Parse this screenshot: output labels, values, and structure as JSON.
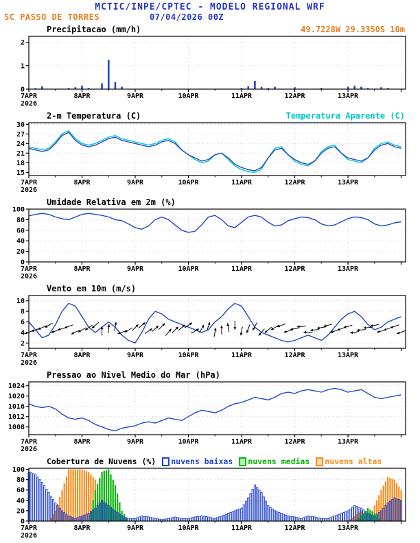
{
  "header": {
    "title": "MCTIC/INPE/CPTEC - MODELO REGIONAL WRF",
    "station": "SC PASSO DE TORRES",
    "run_datetime": "07/04/2026 00Z"
  },
  "colors": {
    "header_blue": "#2233cc",
    "text_orange": "#e87d1e",
    "line_blue": "#2244cc",
    "line_cyan": "#00c8c8",
    "cloud_green": "#00b400",
    "cloud_orange": "#ff8c1a",
    "axis_black": "#000000",
    "grid_gray": "#c9c9d4"
  },
  "x_axis": {
    "total_hours": 170,
    "data_hours": 168,
    "step_hours": 3,
    "major_tick_every": 24,
    "minor_tick_every": 12,
    "labels": [
      {
        "hour": 0,
        "label": "7APR",
        "sub": "2026"
      },
      {
        "hour": 24,
        "label": "8APR"
      },
      {
        "hour": 48,
        "label": "9APR"
      },
      {
        "hour": 72,
        "label": "10APR"
      },
      {
        "hour": 96,
        "label": "11APR"
      },
      {
        "hour": 120,
        "label": "12APR"
      },
      {
        "hour": 144,
        "label": "13APR"
      }
    ]
  },
  "chart_data": [
    {
      "id": "precipitation",
      "type": "bar",
      "title": "Precipitacao (mm/h)",
      "title_right": "49.7228W 29.3350S 10m",
      "ylim": [
        0,
        2.25
      ],
      "yticks": [
        0,
        1,
        2
      ],
      "series": [
        {
          "name": "precipitacao",
          "color": "#2244cc",
          "style": "fill",
          "values": [
            0,
            0.05,
            0.12,
            0,
            0,
            0,
            0.05,
            0.08,
            0.15,
            0.05,
            0,
            0.25,
            1.25,
            0.3,
            0.1,
            0,
            0,
            0,
            0,
            0,
            0,
            0,
            0,
            0,
            0,
            0,
            0,
            0,
            0,
            0,
            0,
            0,
            0.05,
            0.12,
            0.35,
            0.1,
            0.05,
            0.1,
            0,
            0,
            0.08,
            0,
            0,
            0,
            0.05,
            0,
            0,
            0,
            0.1,
            0.15,
            0.1,
            0.05,
            0,
            0.08,
            0.05,
            0,
            0
          ]
        }
      ]
    },
    {
      "id": "temperature",
      "type": "line",
      "title": "2-m Temperatura (C)",
      "title_right": "Temperatura Aparente (C)",
      "ylim": [
        14,
        30.5
      ],
      "yticks": [
        15,
        18,
        21,
        24,
        27,
        30
      ],
      "series": [
        {
          "name": "temperatura-aparente",
          "color": "#00c8c8",
          "values": [
            23,
            22.5,
            22,
            22.5,
            24.5,
            27,
            28,
            25.5,
            24,
            23.5,
            24,
            25,
            26,
            26.5,
            25.5,
            25,
            24.5,
            24,
            23.5,
            24,
            25,
            25.5,
            24.5,
            22,
            20.5,
            19,
            18,
            18.5,
            20.5,
            21,
            19,
            17,
            15.8,
            15.2,
            15,
            16,
            19.5,
            22.5,
            23,
            20.5,
            18.5,
            17.5,
            17,
            18.5,
            21.5,
            23,
            23.5,
            21,
            19,
            18.5,
            18,
            19.5,
            22.5,
            24,
            24.5,
            23.5,
            23
          ]
        },
        {
          "name": "2m-temperatura",
          "color": "#2244cc",
          "values": [
            22.5,
            22,
            21.5,
            22,
            24,
            26.5,
            27.5,
            25,
            23.5,
            23,
            23.5,
            24.5,
            25.5,
            26,
            25,
            24.5,
            24,
            23.5,
            23,
            23.5,
            24.5,
            25,
            24,
            22,
            20.5,
            19.5,
            18.5,
            19,
            20.5,
            21,
            19.5,
            17.5,
            16.5,
            15.8,
            15.5,
            16.5,
            19.5,
            22,
            22.5,
            20.5,
            19,
            18,
            17.5,
            18.5,
            21,
            22.5,
            23,
            21,
            19.5,
            19,
            18.5,
            19.5,
            22,
            23.5,
            24,
            23,
            22.5
          ]
        }
      ]
    },
    {
      "id": "humidity",
      "type": "line",
      "title": "Umidade Relativa em 2m (%)",
      "ylim": [
        0,
        100
      ],
      "yticks": [
        0,
        20,
        40,
        60,
        80,
        100
      ],
      "series": [
        {
          "name": "umidade-relativa",
          "color": "#2244cc",
          "values": [
            87,
            90,
            92,
            90,
            85,
            82,
            80,
            85,
            90,
            92,
            90,
            88,
            85,
            80,
            78,
            72,
            65,
            62,
            68,
            80,
            85,
            80,
            70,
            60,
            56,
            58,
            70,
            85,
            88,
            80,
            68,
            65,
            75,
            85,
            88,
            85,
            75,
            68,
            70,
            78,
            82,
            85,
            84,
            80,
            72,
            68,
            70,
            76,
            82,
            85,
            84,
            80,
            72,
            68,
            70,
            74,
            76
          ]
        }
      ]
    },
    {
      "id": "wind",
      "type": "line",
      "title": "Vento em 10m (m/s)",
      "ylim": [
        1,
        11
      ],
      "yticks": [
        2,
        4,
        6,
        8,
        10
      ],
      "series": [
        {
          "name": "vento-10m",
          "color": "#2244cc",
          "values": [
            6,
            4.5,
            3,
            3.5,
            5.5,
            8,
            9.5,
            9,
            7,
            5,
            4,
            5,
            6,
            5,
            3.5,
            2.5,
            2,
            4,
            6.5,
            8,
            7.5,
            6.5,
            6,
            5.5,
            5,
            4.5,
            4,
            4.5,
            6,
            7,
            8.5,
            9.5,
            9,
            7,
            5,
            4,
            3.5,
            3,
            2.5,
            2.2,
            2.5,
            3,
            3.5,
            3,
            2.5,
            3.5,
            5,
            6.5,
            7.5,
            8,
            7,
            5.5,
            4.5,
            5,
            6,
            6.5,
            7
          ]
        }
      ],
      "arrows": {
        "color": "#000000",
        "level": 4.7,
        "directions_deg": [
          200,
          200,
          205,
          210,
          200,
          195,
          200,
          205,
          210,
          215,
          220,
          90,
          85,
          80,
          200,
          210,
          45,
          40,
          35,
          40,
          45,
          50,
          45,
          40,
          35,
          30,
          60,
          70,
          80,
          90,
          100,
          270,
          260,
          250,
          240,
          230,
          220,
          210,
          200,
          195,
          190,
          185,
          180,
          185,
          190,
          195,
          200,
          200,
          195,
          190,
          185,
          185,
          190,
          195,
          200,
          200,
          200
        ]
      }
    },
    {
      "id": "pressure",
      "type": "line",
      "title": "Pressao ao Nivel Medio do Mar (hPa)",
      "ylim": [
        1005,
        1025.5
      ],
      "yticks": [
        1008,
        1012,
        1016,
        1020,
        1024
      ],
      "series": [
        {
          "name": "pressao-nivel-mar",
          "color": "#2244cc",
          "values": [
            1017,
            1016,
            1015.5,
            1016,
            1015,
            1013,
            1011.5,
            1011,
            1011.5,
            1010.5,
            1009,
            1008,
            1007,
            1006.5,
            1007.5,
            1008,
            1008.5,
            1009.5,
            1010,
            1009.5,
            1010.5,
            1011.5,
            1011,
            1010.5,
            1012,
            1013.5,
            1014.5,
            1014,
            1013.5,
            1014.5,
            1016,
            1017,
            1017.5,
            1018.5,
            1019.5,
            1019,
            1018.5,
            1019.5,
            1021,
            1021.5,
            1021,
            1022,
            1022.5,
            1022,
            1021.5,
            1022.5,
            1023,
            1022.5,
            1021.5,
            1022,
            1022.5,
            1021,
            1019.5,
            1019,
            1019.5,
            1020,
            1020.5
          ]
        }
      ]
    },
    {
      "id": "clouds",
      "type": "bar",
      "interp_hourly": true,
      "title": "Cobertura de Nuvens (%)",
      "ylim": [
        0,
        102
      ],
      "yticks": [
        0,
        20,
        40,
        60,
        80,
        100
      ],
      "series": [
        {
          "name": "nuvens-altas",
          "label": "nuvens altas",
          "color": "#ff8c1a",
          "style": "fill",
          "values": [
            0,
            0,
            0,
            0,
            20,
            60,
            100,
            100,
            100,
            95,
            80,
            40,
            20,
            0,
            0,
            0,
            0,
            0,
            0,
            0,
            0,
            0,
            0,
            0,
            0,
            0,
            0,
            0,
            0,
            0,
            0,
            0,
            0,
            0,
            0,
            0,
            0,
            0,
            0,
            0,
            0,
            0,
            0,
            0,
            0,
            0,
            0,
            0,
            0,
            10,
            20,
            0,
            30,
            60,
            85,
            80,
            60
          ]
        },
        {
          "name": "nuvens-medias",
          "label": "nuvens medias",
          "color": "#00b400",
          "style": "fill",
          "values": [
            0,
            0,
            0,
            0,
            0,
            0,
            0,
            0,
            0,
            0,
            60,
            95,
            100,
            70,
            20,
            0,
            0,
            0,
            0,
            0,
            0,
            0,
            0,
            0,
            0,
            0,
            0,
            0,
            0,
            0,
            0,
            0,
            0,
            0,
            0,
            0,
            0,
            0,
            0,
            0,
            0,
            0,
            0,
            0,
            0,
            0,
            0,
            0,
            0,
            0,
            10,
            25,
            15,
            0,
            0,
            0,
            0
          ]
        },
        {
          "name": "nuvens-baixas",
          "label": "nuvens baixas",
          "color": "#2244cc",
          "style": "outline",
          "values": [
            95,
            90,
            75,
            55,
            35,
            20,
            10,
            5,
            10,
            15,
            25,
            40,
            30,
            20,
            10,
            5,
            5,
            10,
            8,
            5,
            3,
            5,
            8,
            5,
            5,
            8,
            10,
            8,
            5,
            10,
            15,
            20,
            25,
            45,
            70,
            55,
            30,
            20,
            15,
            10,
            8,
            5,
            10,
            8,
            5,
            5,
            10,
            15,
            20,
            30,
            25,
            15,
            10,
            20,
            35,
            45,
            40
          ]
        }
      ]
    }
  ]
}
